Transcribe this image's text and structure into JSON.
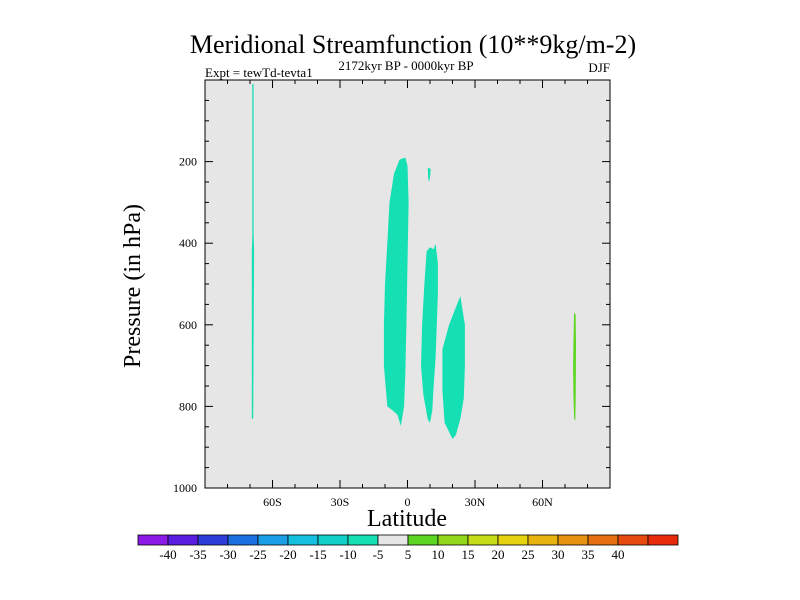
{
  "chart_data": {
    "type": "contour",
    "title": "Meridional Streamfunction (10**9kg/m-2)",
    "subtitle_left": "Expt = tewTd-tevta1",
    "subtitle_center": "2172kyr BP - 0000kyr BP",
    "subtitle_right": "DJF",
    "xlabel": "Latitude",
    "ylabel": "Pressure (in hPa)",
    "xlim": [
      -90,
      90
    ],
    "ylim": [
      0,
      1000
    ],
    "y_inverted": true,
    "x_ticks": [
      {
        "value": -60,
        "label": "60S"
      },
      {
        "value": -30,
        "label": "30S"
      },
      {
        "value": 0,
        "label": "0"
      },
      {
        "value": 30,
        "label": "30N"
      },
      {
        "value": 60,
        "label": "60N"
      }
    ],
    "y_ticks": [
      {
        "value": 200,
        "label": "200"
      },
      {
        "value": 400,
        "label": "400"
      },
      {
        "value": 600,
        "label": "600"
      },
      {
        "value": 800,
        "label": "800"
      },
      {
        "value": 1000,
        "label": "1000"
      }
    ],
    "background_level": "-5 to 5",
    "colorbar": {
      "colors": [
        "#8c1ae6",
        "#5a1ee0",
        "#2d3fd8",
        "#1b6fe0",
        "#1a9fe6",
        "#13c0e0",
        "#12cfca",
        "#14e0b4",
        "#e6e6e6",
        "#5cd620",
        "#92d81a",
        "#c6dc18",
        "#e6d20f",
        "#e6b30f",
        "#e69310",
        "#e6700f",
        "#e64a0f",
        "#e62a0a"
      ],
      "labels": [
        "-40",
        "-35",
        "-30",
        "-25",
        "-20",
        "-15",
        "-10",
        "-5",
        "5",
        "10",
        "15",
        "20",
        "25",
        "30",
        "35",
        "40"
      ]
    },
    "regions": [
      {
        "name": "thin-negative-strip-60S",
        "color": "#14e0b4",
        "level": "-10 to -5",
        "points": [
          [
            -69.0,
            10
          ],
          [
            -68.4,
            10
          ],
          [
            -68.4,
            380
          ],
          [
            -68.2,
            420
          ],
          [
            -68.6,
            830
          ],
          [
            -69.2,
            830
          ],
          [
            -69.2,
            420
          ],
          [
            -69.0,
            380
          ]
        ]
      },
      {
        "name": "equatorial-negative-cell",
        "color": "#14e0b4",
        "level": "-10 to -5",
        "points": [
          [
            -9.0,
            800
          ],
          [
            -10.5,
            700
          ],
          [
            -10.5,
            600
          ],
          [
            -10.0,
            500
          ],
          [
            -9.0,
            400
          ],
          [
            -8.0,
            300
          ],
          [
            -6.0,
            230
          ],
          [
            -3.5,
            195
          ],
          [
            -1.0,
            190
          ],
          [
            0.0,
            210
          ],
          [
            0.5,
            300
          ],
          [
            0.0,
            450
          ],
          [
            -0.5,
            600
          ],
          [
            -1.0,
            720
          ],
          [
            -1.5,
            800
          ],
          [
            -3.0,
            848
          ],
          [
            -4.5,
            820
          ],
          [
            -7.0,
            808
          ]
        ]
      },
      {
        "name": "small-negative-spot",
        "color": "#14e0b4",
        "level": "-10 to -5",
        "points": [
          [
            9.0,
            215
          ],
          [
            10.3,
            218
          ],
          [
            10.0,
            238
          ],
          [
            9.6,
            250
          ],
          [
            9.2,
            240
          ]
        ]
      },
      {
        "name": "negative-cell-10N",
        "color": "#14e0b4",
        "level": "-10 to -5",
        "points": [
          [
            9.0,
            832
          ],
          [
            7.0,
            770
          ],
          [
            6.0,
            700
          ],
          [
            6.5,
            600
          ],
          [
            7.5,
            500
          ],
          [
            8.5,
            420
          ],
          [
            10.0,
            410
          ],
          [
            11.5,
            415
          ],
          [
            12.5,
            402
          ],
          [
            13.5,
            450
          ],
          [
            13.5,
            520
          ],
          [
            13.0,
            600
          ],
          [
            12.5,
            680
          ],
          [
            11.5,
            760
          ],
          [
            11.0,
            810
          ],
          [
            10.0,
            840
          ]
        ]
      },
      {
        "name": "negative-cell-20N",
        "color": "#14e0b4",
        "level": "-10 to -5",
        "points": [
          [
            20.0,
            880
          ],
          [
            16.5,
            840
          ],
          [
            15.5,
            760
          ],
          [
            15.5,
            660
          ],
          [
            18.5,
            600
          ],
          [
            22.0,
            550
          ],
          [
            23.5,
            530
          ],
          [
            25.5,
            600
          ],
          [
            25.5,
            700
          ],
          [
            25.0,
            780
          ],
          [
            23.5,
            830
          ],
          [
            21.5,
            870
          ]
        ]
      },
      {
        "name": "positive-strip-75N",
        "color": "#5cd620",
        "level": "5 to 10",
        "points": [
          [
            74.0,
            570
          ],
          [
            74.7,
            575
          ],
          [
            74.9,
            650
          ],
          [
            74.8,
            750
          ],
          [
            74.7,
            800
          ],
          [
            74.6,
            835
          ],
          [
            74.1,
            830
          ],
          [
            73.8,
            780
          ],
          [
            73.6,
            700
          ]
        ]
      }
    ]
  }
}
